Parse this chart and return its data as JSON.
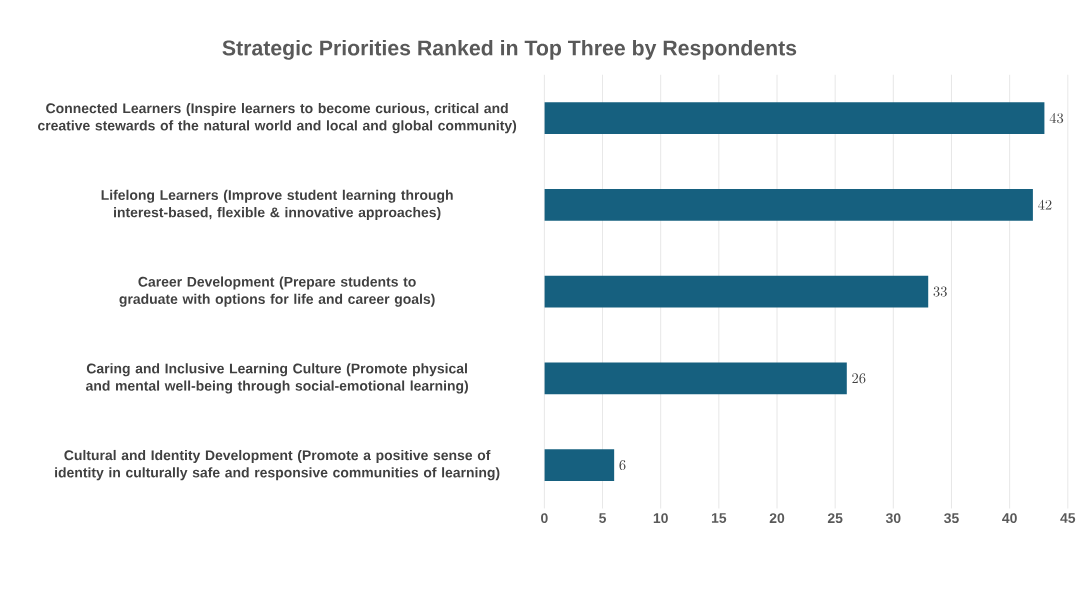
{
  "chart_data": {
    "type": "bar",
    "orientation": "horizontal",
    "title": "Strategic Priorities Ranked in Top Three by Respondents",
    "categories": [
      "Connected Learners (Inspire learners to become curious, critical and creative stewards of the natural world and local and global community)",
      "Lifelong Learners (Improve student learning through interest-based, flexible & innovative approaches)",
      "Career Development (Prepare students to graduate with options for life and career goals)",
      "Caring and Inclusive Learning Culture (Promote physical and mental well-being through social-emotional learning)",
      "Cultural and Identity Development (Promote a positive sense of identity in culturally safe and responsive communities of learning)"
    ],
    "values": [
      43,
      42,
      33,
      26,
      6
    ],
    "color": "#16607f",
    "xlim": [
      0,
      45
    ],
    "xticks": [
      0,
      5,
      10,
      15,
      20,
      25,
      30,
      35,
      40,
      45
    ],
    "grid": "x",
    "data_labels": true
  }
}
